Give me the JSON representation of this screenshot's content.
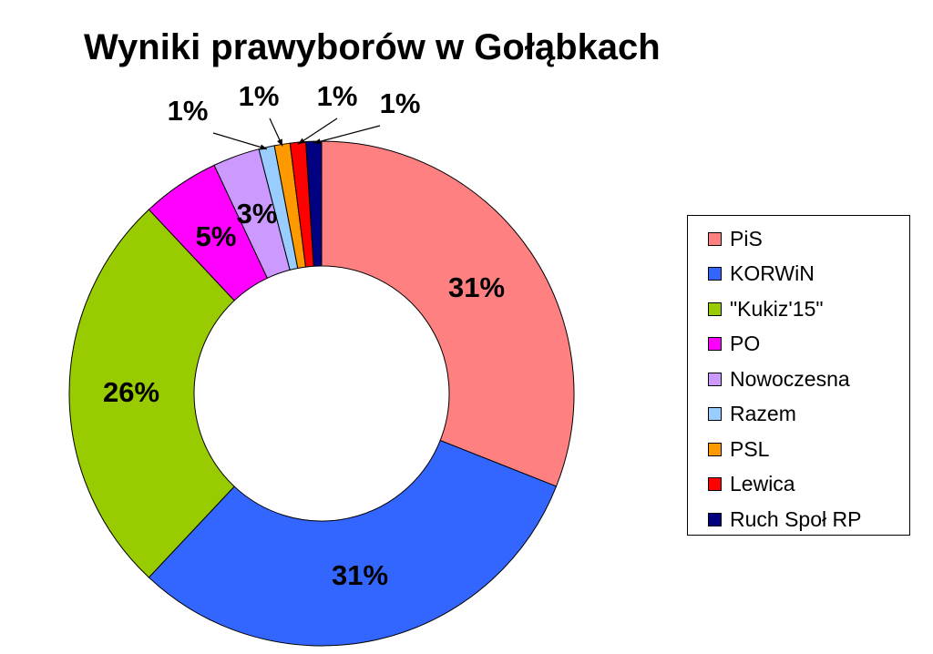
{
  "chart_data": {
    "type": "pie",
    "title": "Wyniki prawyborów w Gołąbkach",
    "categories": [
      "PiS",
      "KORWiN",
      "\"Kukiz'15\"",
      "PO",
      "Nowoczesna",
      "Razem",
      "PSL",
      "Lewica",
      "Ruch Społ RP"
    ],
    "values": [
      31,
      31,
      26,
      5,
      3,
      1,
      1,
      1,
      1
    ],
    "labels": [
      "31%",
      "31%",
      "26%",
      "5%",
      "3%",
      "1%",
      "1%",
      "1%",
      "1%"
    ],
    "colors": [
      "#FF8080",
      "#3366FF",
      "#99CC00",
      "#FF00FF",
      "#CC99FF",
      "#99CCFF",
      "#FF9900",
      "#FF0000",
      "#000080"
    ],
    "donut": true,
    "legend_position": "right"
  }
}
